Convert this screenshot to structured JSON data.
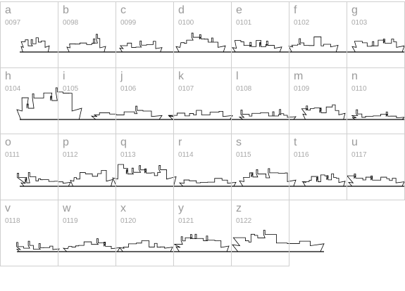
{
  "cells": [
    {
      "letter": "a",
      "code": "0097"
    },
    {
      "letter": "b",
      "code": "0098"
    },
    {
      "letter": "c",
      "code": "0099"
    },
    {
      "letter": "d",
      "code": "0100"
    },
    {
      "letter": "e",
      "code": "0101"
    },
    {
      "letter": "f",
      "code": "0102"
    },
    {
      "letter": "g",
      "code": "0103"
    },
    {
      "letter": "h",
      "code": "0104"
    },
    {
      "letter": "i",
      "code": "0105"
    },
    {
      "letter": "j",
      "code": "0106"
    },
    {
      "letter": "k",
      "code": "0107"
    },
    {
      "letter": "l",
      "code": "0108"
    },
    {
      "letter": "m",
      "code": "0109"
    },
    {
      "letter": "n",
      "code": "0110"
    },
    {
      "letter": "o",
      "code": "0111"
    },
    {
      "letter": "p",
      "code": "0112"
    },
    {
      "letter": "q",
      "code": "0113"
    },
    {
      "letter": "r",
      "code": "0114"
    },
    {
      "letter": "s",
      "code": "0115"
    },
    {
      "letter": "t",
      "code": "0116"
    },
    {
      "letter": "u",
      "code": "0117"
    },
    {
      "letter": "v",
      "code": "0118"
    },
    {
      "letter": "w",
      "code": "0119"
    },
    {
      "letter": "x",
      "code": "0120"
    },
    {
      "letter": "y",
      "code": "0121"
    },
    {
      "letter": "z",
      "code": "0122"
    }
  ]
}
